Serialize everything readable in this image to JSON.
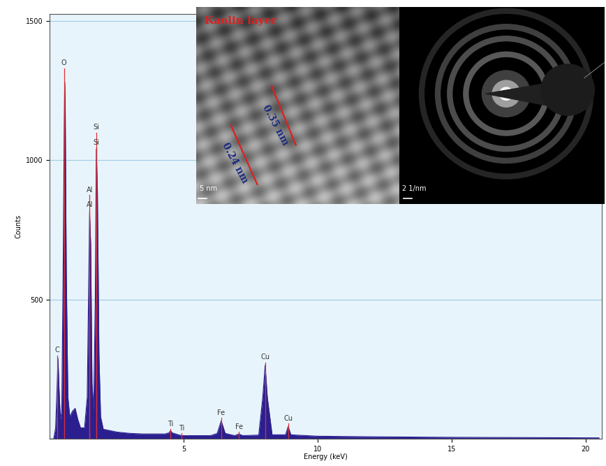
{
  "chart_data": {
    "type": "area",
    "x_label": "Energy (keV)",
    "y_label": "Counts",
    "x": [
      0.0,
      0.15,
      0.22,
      0.28,
      0.31,
      0.35,
      0.4,
      0.45,
      0.5,
      0.54,
      0.56,
      0.58,
      0.62,
      0.68,
      0.75,
      0.85,
      0.95,
      1.05,
      1.15,
      1.3,
      1.4,
      1.46,
      1.49,
      1.53,
      1.58,
      1.64,
      1.7,
      1.74,
      1.78,
      1.84,
      1.9,
      2.0,
      2.5,
      3.0,
      3.5,
      4.3,
      4.45,
      4.51,
      4.57,
      4.8,
      4.93,
      5.1,
      6.0,
      6.25,
      6.4,
      6.55,
      6.9,
      7.06,
      7.2,
      7.8,
      7.95,
      8.04,
      8.12,
      8.3,
      8.8,
      8.9,
      9.0,
      10,
      12,
      15,
      18,
      20.5
    ],
    "values": [
      0,
      0,
      40,
      200,
      290,
      180,
      70,
      100,
      600,
      1100,
      1280,
      1200,
      600,
      150,
      80,
      100,
      110,
      70,
      40,
      40,
      150,
      600,
      810,
      700,
      200,
      100,
      500,
      1040,
      900,
      300,
      80,
      35,
      25,
      20,
      18,
      18,
      22,
      30,
      22,
      15,
      12,
      12,
      12,
      20,
      65,
      20,
      12,
      18,
      12,
      14,
      150,
      265,
      150,
      15,
      15,
      45,
      15,
      10,
      8,
      6,
      5,
      4
    ],
    "color": "#2b1f8f",
    "xlim": [
      0,
      20.6
    ],
    "ylim": [
      0,
      1525
    ],
    "xticks": [
      5,
      10,
      15,
      20
    ],
    "yticks": [
      500,
      1000,
      1500
    ],
    "grid": true,
    "annotations": [
      {
        "text": "C",
        "x": 0.28,
        "y": 300
      },
      {
        "text": "O",
        "x": 0.53,
        "y": 1330
      },
      {
        "text": "Al",
        "x": 1.49,
        "y": 820
      },
      {
        "text": "Al",
        "x": 1.49,
        "y": 875
      },
      {
        "text": "Si",
        "x": 1.74,
        "y": 1045
      },
      {
        "text": "Si",
        "x": 1.74,
        "y": 1100
      },
      {
        "text": "Ti",
        "x": 4.51,
        "y": 35
      },
      {
        "text": "Ti",
        "x": 4.93,
        "y": 20
      },
      {
        "text": "Fe",
        "x": 6.4,
        "y": 75
      },
      {
        "text": "Fe",
        "x": 7.06,
        "y": 25
      },
      {
        "text": "Cu",
        "x": 8.04,
        "y": 275
      },
      {
        "text": "Cu",
        "x": 8.9,
        "y": 55
      }
    ]
  },
  "insets": {
    "title": "Kaolin layer",
    "lattice_spacings": [
      "0.24 nm",
      "0.35 nm"
    ],
    "scale_bars": [
      "5 nm",
      "2 1/nm"
    ]
  }
}
